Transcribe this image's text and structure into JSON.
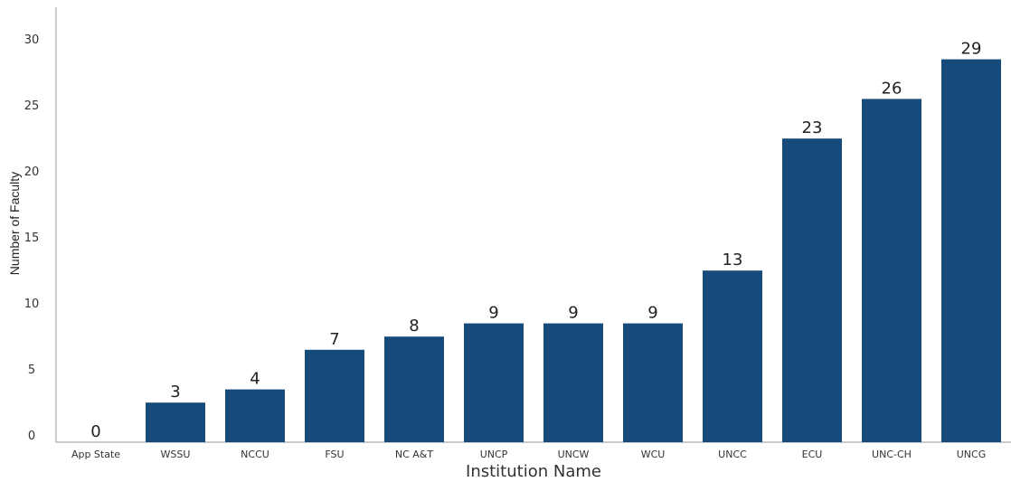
{
  "chart_data": {
    "type": "bar",
    "title": "",
    "xlabel": "Institution Name",
    "ylabel": "Number of Faculty",
    "categories": [
      "App State",
      "WSSU",
      "NCCU",
      "FSU",
      "NC A&T",
      "UNCP",
      "UNCW",
      "WCU",
      "UNCC",
      "ECU",
      "UNC-CH",
      "UNCG"
    ],
    "values": [
      0,
      3,
      4,
      7,
      8,
      9,
      9,
      9,
      13,
      23,
      26,
      29
    ],
    "y_ticks": [
      0,
      5,
      10,
      15,
      20,
      25,
      30
    ],
    "ylim": [
      0,
      32.5
    ],
    "grid": false,
    "legend": "none",
    "colors": {
      "bar": "#154a7a"
    }
  }
}
